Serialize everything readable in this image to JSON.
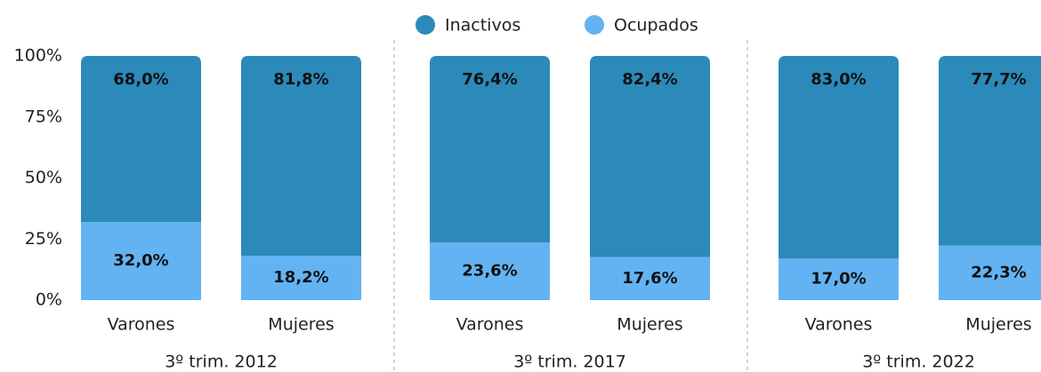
{
  "chart_data": {
    "type": "stacked_bar",
    "categories": [
      "Varones",
      "Mujeres",
      "Varones",
      "Mujeres",
      "Varones",
      "Mujeres"
    ],
    "groups": [
      "3º trim. 2012",
      "3º trim. 2017",
      "3º trim. 2022"
    ],
    "series": [
      {
        "name": "Ocupados",
        "color": "#63b3f2",
        "values": [
          32.0,
          18.2,
          23.6,
          17.6,
          17.0,
          22.3
        ],
        "value_labels": [
          "32,0%",
          "18,2%",
          "23,6%",
          "17,6%",
          "17,0%",
          "22,3%"
        ]
      },
      {
        "name": "Inactivos",
        "color": "#2b8aba",
        "values": [
          68.0,
          81.8,
          76.4,
          82.4,
          83.0,
          77.7
        ],
        "value_labels": [
          "68,0%",
          "81,8%",
          "76,4%",
          "82,4%",
          "83,0%",
          "77,7%"
        ]
      }
    ],
    "ylim": [
      0,
      100
    ],
    "yticks": [
      {
        "value": 0,
        "label": "0%"
      },
      {
        "value": 25,
        "label": "25%"
      },
      {
        "value": 50,
        "label": "50%"
      },
      {
        "value": 75,
        "label": "75%"
      },
      {
        "value": 100,
        "label": "100%"
      }
    ]
  }
}
